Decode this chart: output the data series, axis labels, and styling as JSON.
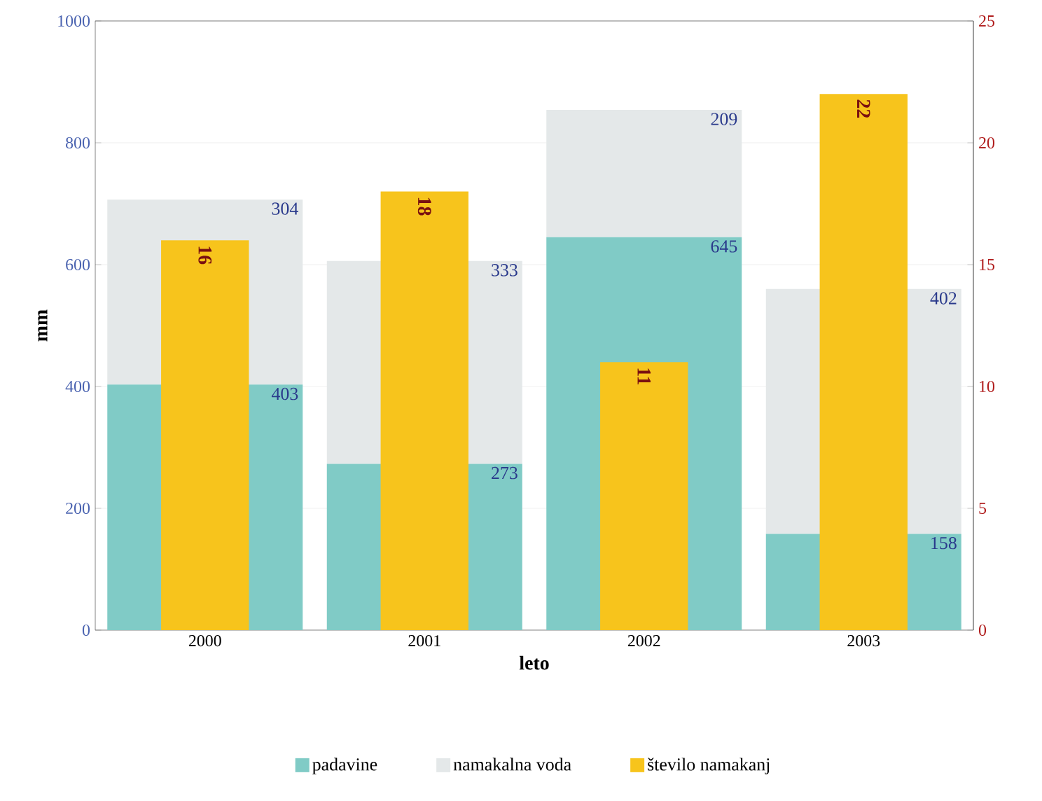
{
  "chart_data": {
    "type": "bar",
    "stacked": true,
    "xlabel": "leto",
    "ylabel": "mm",
    "categories": [
      "2000",
      "2001",
      "2002",
      "2003"
    ],
    "series": [
      {
        "name": "padavine",
        "color": "#80cbc6",
        "values": [
          403,
          273,
          645,
          158
        ]
      },
      {
        "name": "namakalna voda",
        "color": "#e4e8e9",
        "values": [
          304,
          333,
          209,
          402
        ]
      },
      {
        "name": "število namakanj",
        "color": "#f7c41c",
        "values": [
          16,
          18,
          11,
          22
        ],
        "axis": "y2"
      }
    ],
    "ylim": [
      0,
      1000
    ],
    "yticks": [
      0,
      200,
      400,
      600,
      800,
      1000
    ],
    "y2lim": [
      0,
      25
    ],
    "y2ticks": [
      0,
      5,
      10,
      15,
      20,
      25
    ],
    "grid": "y",
    "legend": "bottom",
    "data_labels": true
  }
}
